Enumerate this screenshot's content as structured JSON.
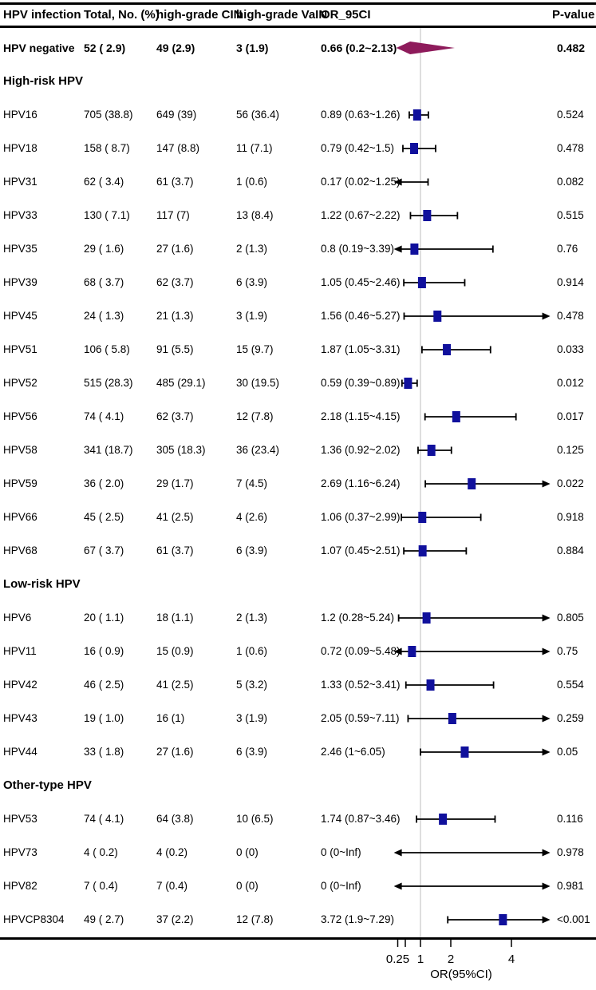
{
  "header": {
    "columns": [
      "HPV infection",
      "Total, No. (%)",
      "high-grade CIN",
      "high-grade VaIN",
      "OR_95CI",
      "P-value"
    ]
  },
  "axis": {
    "label": "OR(95%CI)",
    "scale": "linear",
    "range": [
      0.2,
      5.2
    ],
    "ref_line": 1,
    "ticks": [
      0.25,
      0.5,
      1,
      2,
      4
    ],
    "tick_labels": [
      "0.25",
      "",
      "1",
      "2",
      "4"
    ]
  },
  "colors": {
    "box": "#10109C",
    "diamond": "#8E1B5B",
    "line": "#000000",
    "ref_line": "#CCCCCC"
  },
  "chart_data": {
    "type": "forest",
    "title": "",
    "xlabel": "OR(95%CI)",
    "xlim": [
      0.2,
      5.2
    ],
    "rows": [
      {
        "type": "summary",
        "label": "HPV negative",
        "total": "52 ( 2.9)",
        "cin": "49 (2.9)",
        "vain": "3 (1.9)",
        "or_text": "0.66 (0.2~2.13)",
        "or": 0.66,
        "lower": 0.2,
        "upper": 2.13,
        "p": "0.482"
      },
      {
        "type": "section",
        "label": "High-risk HPV"
      },
      {
        "type": "data",
        "label": "HPV16",
        "total": "705 (38.8)",
        "cin": "649 (39)",
        "vain": "56 (36.4)",
        "or_text": "0.89 (0.63~1.26)",
        "or": 0.89,
        "lower": 0.63,
        "upper": 1.26,
        "p": "0.524"
      },
      {
        "type": "data",
        "label": "HPV18",
        "total": "158 ( 8.7)",
        "cin": "147 (8.8)",
        "vain": "11 (7.1)",
        "or_text": "0.79 (0.42~1.5)",
        "or": 0.79,
        "lower": 0.42,
        "upper": 1.5,
        "p": "0.478"
      },
      {
        "type": "data",
        "label": "HPV31",
        "total": "62 ( 3.4)",
        "cin": "61 (3.7)",
        "vain": "1 (0.6)",
        "or_text": "0.17 (0.02~1.25)",
        "or": 0.17,
        "lower": 0.02,
        "upper": 1.25,
        "p": "0.082"
      },
      {
        "type": "data",
        "label": "HPV33",
        "total": "130 ( 7.1)",
        "cin": "117 (7)",
        "vain": "13 (8.4)",
        "or_text": "1.22 (0.67~2.22)",
        "or": 1.22,
        "lower": 0.67,
        "upper": 2.22,
        "p": "0.515"
      },
      {
        "type": "data",
        "label": "HPV35",
        "total": "29 ( 1.6)",
        "cin": "27 (1.6)",
        "vain": "2 (1.3)",
        "or_text": "0.8 (0.19~3.39)",
        "or": 0.8,
        "lower": 0.19,
        "upper": 3.39,
        "p": "0.76"
      },
      {
        "type": "data",
        "label": "HPV39",
        "total": "68 ( 3.7)",
        "cin": "62 (3.7)",
        "vain": "6 (3.9)",
        "or_text": "1.05 (0.45~2.46)",
        "or": 1.05,
        "lower": 0.45,
        "upper": 2.46,
        "p": "0.914"
      },
      {
        "type": "data",
        "label": "HPV45",
        "total": "24 ( 1.3)",
        "cin": "21 (1.3)",
        "vain": "3 (1.9)",
        "or_text": "1.56 (0.46~5.27)",
        "or": 1.56,
        "lower": 0.46,
        "upper": 5.27,
        "p": "0.478"
      },
      {
        "type": "data",
        "label": "HPV51",
        "total": "106 ( 5.8)",
        "cin": "91 (5.5)",
        "vain": "15 (9.7)",
        "or_text": "1.87 (1.05~3.31)",
        "or": 1.87,
        "lower": 1.05,
        "upper": 3.31,
        "p": "0.033"
      },
      {
        "type": "data",
        "label": "HPV52",
        "total": "515 (28.3)",
        "cin": "485 (29.1)",
        "vain": "30 (19.5)",
        "or_text": "0.59 (0.39~0.89)",
        "or": 0.59,
        "lower": 0.39,
        "upper": 0.89,
        "p": "0.012"
      },
      {
        "type": "data",
        "label": "HPV56",
        "total": "74 ( 4.1)",
        "cin": "62 (3.7)",
        "vain": "12 (7.8)",
        "or_text": "2.18 (1.15~4.15)",
        "or": 2.18,
        "lower": 1.15,
        "upper": 4.15,
        "p": "0.017"
      },
      {
        "type": "data",
        "label": "HPV58",
        "total": "341 (18.7)",
        "cin": "305 (18.3)",
        "vain": "36 (23.4)",
        "or_text": "1.36 (0.92~2.02)",
        "or": 1.36,
        "lower": 0.92,
        "upper": 2.02,
        "p": "0.125"
      },
      {
        "type": "data",
        "label": "HPV59",
        "total": "36 ( 2.0)",
        "cin": "29 (1.7)",
        "vain": "7 (4.5)",
        "or_text": "2.69 (1.16~6.24)",
        "or": 2.69,
        "lower": 1.16,
        "upper": 6.24,
        "p": "0.022"
      },
      {
        "type": "data",
        "label": "HPV66",
        "total": "45 ( 2.5)",
        "cin": "41 (2.5)",
        "vain": "4 (2.6)",
        "or_text": "1.06 (0.37~2.99)",
        "or": 1.06,
        "lower": 0.37,
        "upper": 2.99,
        "p": "0.918"
      },
      {
        "type": "data",
        "label": "HPV68",
        "total": "67 ( 3.7)",
        "cin": "61 (3.7)",
        "vain": "6 (3.9)",
        "or_text": "1.07 (0.45~2.51)",
        "or": 1.07,
        "lower": 0.45,
        "upper": 2.51,
        "p": "0.884"
      },
      {
        "type": "section",
        "label": "Low-risk HPV"
      },
      {
        "type": "data",
        "label": "HPV6",
        "total": "20 ( 1.1)",
        "cin": "18 (1.1)",
        "vain": "2 (1.3)",
        "or_text": "1.2 (0.28~5.24)",
        "or": 1.2,
        "lower": 0.28,
        "upper": 5.24,
        "p": "0.805"
      },
      {
        "type": "data",
        "label": "HPV11",
        "total": "16 ( 0.9)",
        "cin": "15 (0.9)",
        "vain": "1 (0.6)",
        "or_text": "0.72 (0.09~5.48)",
        "or": 0.72,
        "lower": 0.09,
        "upper": 5.48,
        "p": "0.75"
      },
      {
        "type": "data",
        "label": "HPV42",
        "total": "46 ( 2.5)",
        "cin": "41 (2.5)",
        "vain": "5 (3.2)",
        "or_text": "1.33 (0.52~3.41)",
        "or": 1.33,
        "lower": 0.52,
        "upper": 3.41,
        "p": "0.554"
      },
      {
        "type": "data",
        "label": "HPV43",
        "total": "19 ( 1.0)",
        "cin": "16 (1)",
        "vain": "3 (1.9)",
        "or_text": "2.05 (0.59~7.11)",
        "or": 2.05,
        "lower": 0.59,
        "upper": 7.11,
        "p": "0.259"
      },
      {
        "type": "data",
        "label": "HPV44",
        "total": "33 ( 1.8)",
        "cin": "27 (1.6)",
        "vain": "6 (3.9)",
        "or_text": "2.46 (1~6.05)",
        "or": 2.46,
        "lower": 1,
        "upper": 6.05,
        "p": "0.05"
      },
      {
        "type": "section",
        "label": "Other-type HPV"
      },
      {
        "type": "data",
        "label": "HPV53",
        "total": "74 ( 4.1)",
        "cin": "64 (3.8)",
        "vain": "10 (6.5)",
        "or_text": "1.74 (0.87~3.46)",
        "or": 1.74,
        "lower": 0.87,
        "upper": 3.46,
        "p": "0.116"
      },
      {
        "type": "data",
        "label": "HPV73",
        "total": "4 ( 0.2)",
        "cin": "4 (0.2)",
        "vain": "0 (0)",
        "or_text": "0 (0~Inf)",
        "or": 0,
        "lower": 0,
        "upper": null,
        "p": "0.978"
      },
      {
        "type": "data",
        "label": "HPV82",
        "total": "7 ( 0.4)",
        "cin": "7 (0.4)",
        "vain": "0 (0)",
        "or_text": "0 (0~Inf)",
        "or": 0,
        "lower": 0,
        "upper": null,
        "p": "0.981"
      },
      {
        "type": "data",
        "label": "HPVCP8304",
        "total": "49 ( 2.7)",
        "cin": "37 (2.2)",
        "vain": "12 (7.8)",
        "or_text": "3.72 (1.9~7.29)",
        "or": 3.72,
        "lower": 1.9,
        "upper": 7.29,
        "p": "<0.001"
      }
    ]
  }
}
